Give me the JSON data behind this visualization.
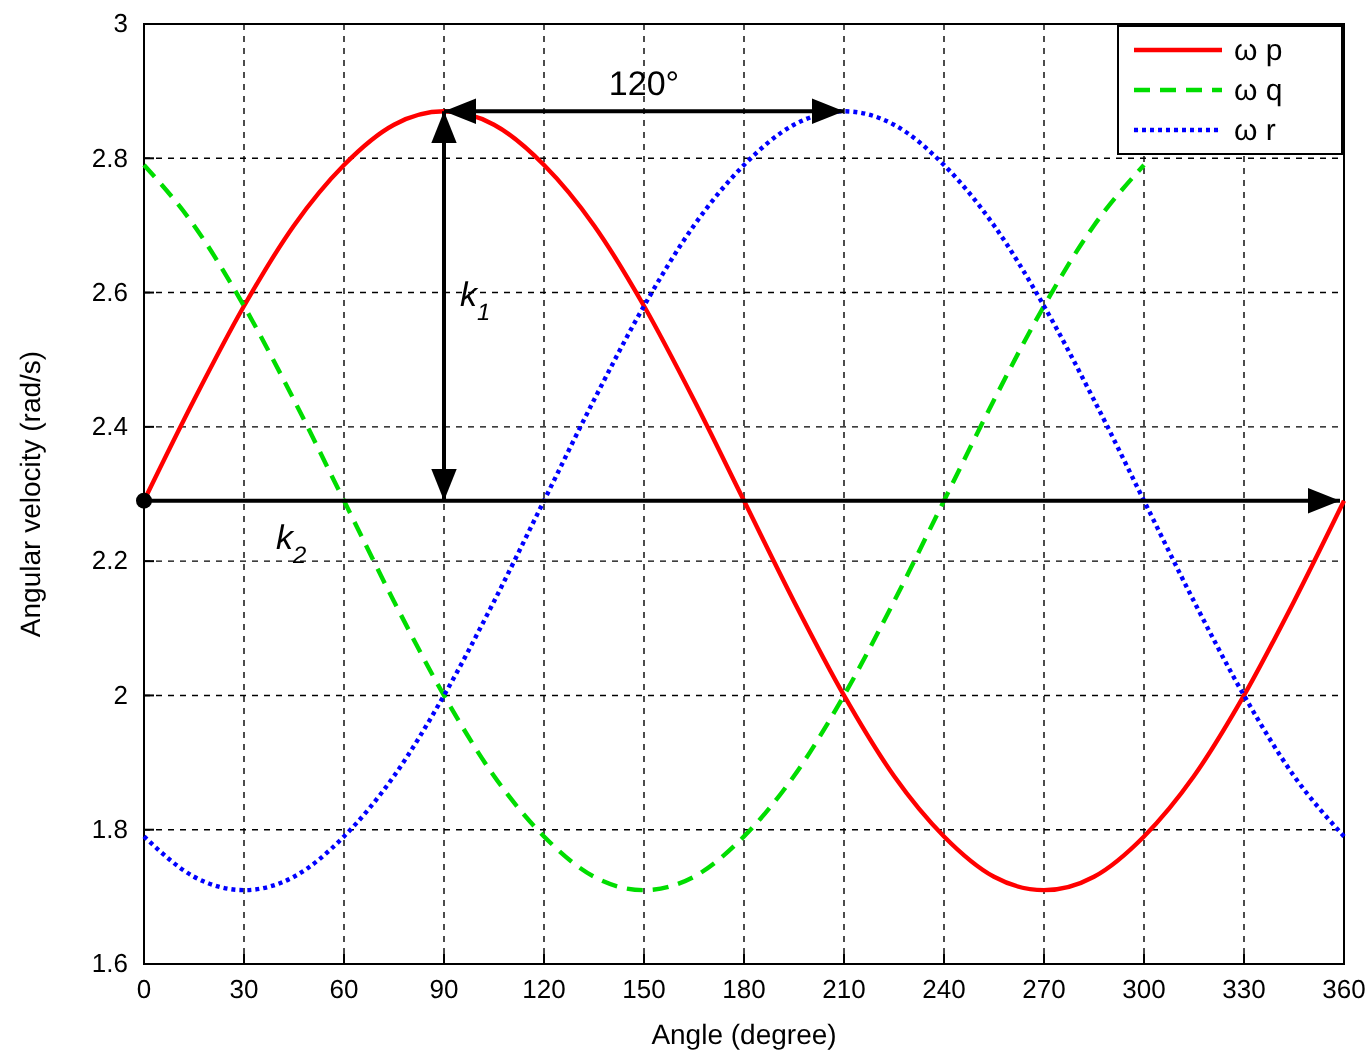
{
  "chart_data": {
    "type": "line",
    "xlabel": "Angle (degree)",
    "ylabel": "Angular velocity (rad/s)",
    "x": [
      0,
      15,
      30,
      45,
      60,
      75,
      90,
      105,
      120,
      135,
      150,
      165,
      180,
      195,
      210,
      225,
      240,
      255,
      270,
      285,
      300,
      315,
      330,
      345,
      360
    ],
    "series": [
      {
        "name": "ω p",
        "color": "#ff0000",
        "line_style": "solid",
        "values": [
          2.29,
          2.44,
          2.58,
          2.7,
          2.79,
          2.85,
          2.87,
          2.85,
          2.79,
          2.7,
          2.58,
          2.44,
          2.29,
          2.14,
          2.0,
          1.88,
          1.79,
          1.73,
          1.71,
          1.73,
          1.79,
          1.88,
          2.0,
          2.14,
          2.29
        ]
      },
      {
        "name": "ω q",
        "color": "#00dd00",
        "line_style": "dashed",
        "values": [
          2.79,
          2.7,
          2.58,
          2.44,
          2.29,
          2.14,
          2.0,
          1.88,
          1.79,
          1.73,
          1.71,
          1.73,
          1.79,
          1.88,
          2.0,
          2.14,
          2.29,
          2.44,
          2.58,
          2.7,
          2.79,
          null,
          null,
          null,
          null
        ]
      },
      {
        "name": "ω r",
        "color": "#0000ff",
        "line_style": "dotted",
        "values": [
          1.79,
          1.73,
          1.71,
          1.73,
          1.79,
          1.88,
          2.0,
          2.14,
          2.29,
          2.44,
          2.58,
          2.7,
          2.79,
          2.85,
          2.87,
          2.85,
          2.79,
          2.7,
          2.58,
          2.44,
          2.29,
          2.14,
          2.0,
          1.88,
          1.79
        ]
      }
    ],
    "xlim": [
      0,
      360
    ],
    "xticks": [
      0,
      30,
      60,
      90,
      120,
      150,
      180,
      210,
      240,
      270,
      300,
      330,
      360
    ],
    "ylim": [
      1.6,
      3
    ],
    "yticks": [
      1.6,
      1.8,
      2,
      2.2,
      2.4,
      2.6,
      2.8,
      3
    ],
    "grid": true,
    "legend": "top right",
    "marker": "none",
    "ref_lines": [
      {
        "axis": "y",
        "value": 2.29,
        "label": "k$_{2}$"
      }
    ],
    "annotations": [
      "120°",
      "k$_{1}$"
    ]
  }
}
